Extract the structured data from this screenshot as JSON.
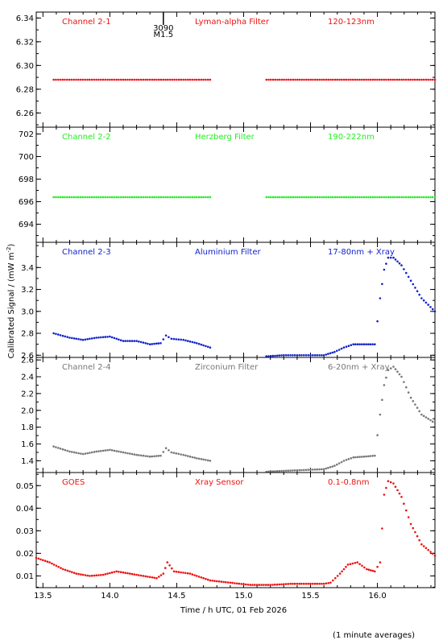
{
  "chart_data": {
    "type": "scatter",
    "ylabel_main": "Calibrated Signal / (mW m",
    "ylabel_sup": "-2",
    "ylabel_end": ")",
    "xlabel": "Time / h UTC, 01 Feb 2026",
    "footnote": "(1 minute averages)",
    "xlim": [
      13.45,
      16.43
    ],
    "xticks": [
      "13.5",
      "14.0",
      "14.5",
      "15.0",
      "15.5",
      "16.0"
    ],
    "xtick_values": [
      13.5,
      14.0,
      14.5,
      15.0,
      15.5,
      16.0
    ],
    "annotation": {
      "x": 14.4,
      "line1": "3090",
      "line2": "M1.5"
    },
    "panels": [
      {
        "channel": "Channel 2-1",
        "filter": "Lyman-alpha Filter",
        "range": "120-123nm",
        "color": "#ee1111",
        "ylim": [
          6.248,
          6.345
        ],
        "yticks": [
          "6.26",
          "6.28",
          "6.30",
          "6.32",
          "6.34"
        ],
        "ytick_values": [
          6.26,
          6.28,
          6.3,
          6.32,
          6.34
        ],
        "segments": [
          {
            "x": [
              13.58,
              14.0,
              14.4,
              14.75
            ],
            "y": [
              6.288,
              6.288,
              6.288,
              6.288
            ]
          },
          {
            "x": [
              15.17,
              15.8,
              16.43
            ],
            "y": [
              6.288,
              6.288,
              6.288
            ]
          }
        ]
      },
      {
        "channel": "Channel 2-2",
        "filter": "Herzberg Filter",
        "range": "190-222nm",
        "color": "#22ee22",
        "ylim": [
          692.4,
          702.6
        ],
        "yticks": [
          "694",
          "696",
          "698",
          "700",
          "702"
        ],
        "ytick_values": [
          694,
          696,
          698,
          700,
          702
        ],
        "segments": [
          {
            "x": [
              13.58,
              14.0,
              14.4,
              14.75
            ],
            "y": [
              696.4,
              696.4,
              696.4,
              696.4
            ]
          },
          {
            "x": [
              15.17,
              15.8,
              16.43
            ],
            "y": [
              696.4,
              696.4,
              696.4
            ]
          }
        ]
      },
      {
        "channel": "Channel 2-3",
        "filter": "Aluminium Filter",
        "range": "17-80nm + Xray",
        "color": "#1122cc",
        "ylim": [
          2.58,
          3.63
        ],
        "yticks": [
          "2.6",
          "2.8",
          "3.0",
          "3.2",
          "3.4"
        ],
        "ytick_values": [
          2.6,
          2.8,
          3.0,
          3.2,
          3.4
        ],
        "segments": [
          {
            "x": [
              13.58,
              13.7,
              13.8,
              13.9,
              14.0,
              14.1,
              14.2,
              14.3,
              14.38,
              14.42,
              14.46,
              14.55,
              14.65,
              14.75
            ],
            "y": [
              2.8,
              2.76,
              2.74,
              2.76,
              2.77,
              2.73,
              2.73,
              2.7,
              2.71,
              2.78,
              2.75,
              2.74,
              2.71,
              2.67
            ]
          },
          {
            "x": [
              15.17,
              15.3,
              15.45,
              15.6,
              15.68,
              15.75,
              15.82,
              15.9,
              15.98,
              16.02,
              16.05,
              16.08,
              16.12,
              16.18,
              16.25,
              16.33,
              16.43
            ],
            "y": [
              2.59,
              2.6,
              2.6,
              2.6,
              2.63,
              2.67,
              2.7,
              2.7,
              2.7,
              3.12,
              3.38,
              3.49,
              3.49,
              3.42,
              3.28,
              3.12,
              3.0
            ]
          }
        ]
      },
      {
        "channel": "Channel 2-4",
        "filter": "Zirconium Filter",
        "range": "6-20nm + Xray",
        "color": "#777777",
        "ylim": [
          1.26,
          2.63
        ],
        "yticks": [
          "1.4",
          "1.6",
          "1.8",
          "2.0",
          "2.2",
          "2.4",
          "2.6"
        ],
        "ytick_values": [
          1.4,
          1.6,
          1.8,
          2.0,
          2.2,
          2.4,
          2.6
        ],
        "segments": [
          {
            "x": [
              13.58,
              13.7,
              13.8,
              13.9,
              14.0,
              14.1,
              14.2,
              14.3,
              14.38,
              14.42,
              14.46,
              14.55,
              14.65,
              14.75
            ],
            "y": [
              1.57,
              1.51,
              1.48,
              1.51,
              1.53,
              1.5,
              1.47,
              1.45,
              1.46,
              1.55,
              1.5,
              1.47,
              1.43,
              1.4
            ]
          },
          {
            "x": [
              15.17,
              15.3,
              15.45,
              15.6,
              15.68,
              15.75,
              15.82,
              15.9,
              15.98,
              16.02,
              16.05,
              16.08,
              16.12,
              16.18,
              16.25,
              16.33,
              16.43
            ],
            "y": [
              1.27,
              1.28,
              1.29,
              1.3,
              1.34,
              1.4,
              1.44,
              1.45,
              1.46,
              1.95,
              2.3,
              2.48,
              2.52,
              2.4,
              2.15,
              1.95,
              1.85
            ]
          }
        ]
      },
      {
        "channel": "GOES",
        "filter": "Xray Sensor",
        "range": "0.1-0.8nm",
        "color": "#ee1111",
        "ylim": [
          0.0048,
          0.0558
        ],
        "yticks": [
          "0.01",
          "0.02",
          "0.03",
          "0.04",
          "0.05"
        ],
        "ytick_values": [
          0.01,
          0.02,
          0.03,
          0.04,
          0.05
        ],
        "segments": [
          {
            "x": [
              13.45,
              13.55,
              13.65,
              13.75,
              13.85,
              13.95,
              14.05,
              14.15,
              14.25,
              14.35,
              14.4,
              14.43,
              14.48,
              14.6,
              14.75,
              14.9,
              15.05,
              15.2,
              15.35,
              15.5,
              15.6,
              15.65,
              15.72,
              15.78,
              15.85,
              15.92,
              15.98,
              16.02,
              16.05,
              16.08,
              16.12,
              16.18,
              16.25,
              16.33,
              16.43
            ],
            "y": [
              0.018,
              0.016,
              0.013,
              0.011,
              0.01,
              0.0105,
              0.012,
              0.011,
              0.01,
              0.009,
              0.011,
              0.016,
              0.012,
              0.011,
              0.008,
              0.007,
              0.006,
              0.006,
              0.0065,
              0.0065,
              0.0065,
              0.007,
              0.011,
              0.015,
              0.016,
              0.013,
              0.012,
              0.016,
              0.046,
              0.052,
              0.051,
              0.045,
              0.033,
              0.024,
              0.019
            ]
          }
        ]
      }
    ]
  }
}
